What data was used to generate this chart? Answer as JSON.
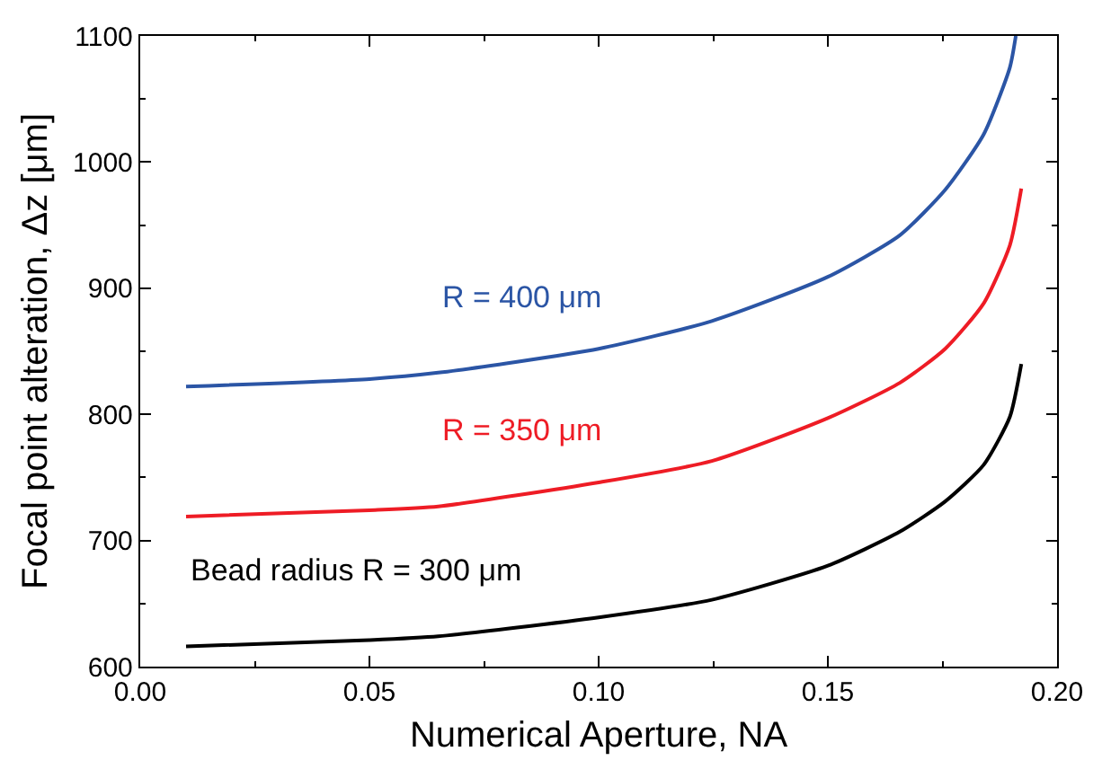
{
  "chart_data": {
    "type": "line",
    "xlabel": "Numerical Aperture, NA",
    "ylabel": "Focal point alteration, Δz [μm]",
    "xlim": [
      0,
      0.2
    ],
    "ylim": [
      600,
      1100
    ],
    "xticks": [
      {
        "value": 0,
        "label": "0.00"
      },
      {
        "value": 0.05,
        "label": "0.05"
      },
      {
        "value": 0.1,
        "label": "0.10"
      },
      {
        "value": 0.15,
        "label": "0.15"
      },
      {
        "value": 0.2,
        "label": "0.20"
      }
    ],
    "yticks": [
      600,
      700,
      800,
      900,
      1000,
      1100
    ],
    "grid": false,
    "legend": false,
    "marker": "none",
    "line_style": "solid",
    "series": [
      {
        "name": "Bead radius R = 300 μm",
        "color": "#000000",
        "x": [
          0.01,
          0.05,
          0.065,
          0.1,
          0.1247,
          0.15,
          0.1657,
          0.1756,
          0.184,
          0.1897,
          0.1922
        ],
        "values": [
          616,
          621,
          624,
          639,
          653,
          680,
          707,
          731,
          760,
          798,
          840
        ]
      },
      {
        "name": "R = 350 μm",
        "color": "#ee1c25",
        "x": [
          0.01,
          0.05,
          0.065,
          0.1,
          0.1247,
          0.15,
          0.1657,
          0.1756,
          0.184,
          0.1897,
          0.1922
        ],
        "values": [
          719,
          724,
          727,
          746,
          763,
          797,
          825,
          852,
          888,
          934,
          979
        ]
      },
      {
        "name": "R = 400 μm",
        "color": "#2b55a5",
        "x": [
          0.01,
          0.05,
          0.065,
          0.1,
          0.1247,
          0.15,
          0.1657,
          0.1756,
          0.184,
          0.1897,
          0.191
        ],
        "values": [
          822,
          828,
          833,
          852,
          874,
          909,
          942,
          978,
          1022,
          1075,
          1100
        ]
      }
    ]
  }
}
